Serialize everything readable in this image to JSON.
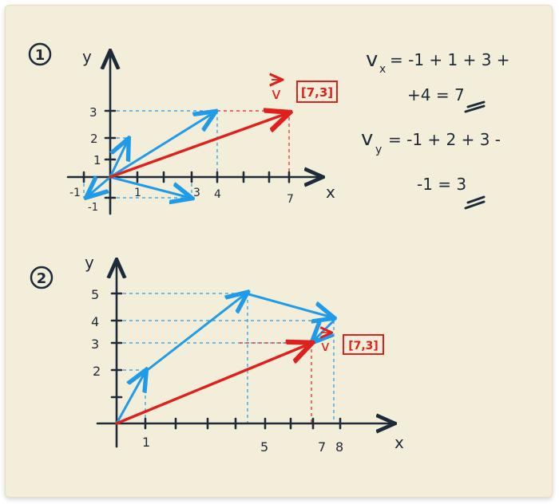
{
  "diagram1": {
    "number": "1",
    "x_axis_label": "x",
    "y_axis_label": "y",
    "x_ticks": [
      "-1",
      "1",
      "3",
      "4",
      "7"
    ],
    "y_ticks": [
      "3",
      "2",
      "1",
      "-1"
    ],
    "result_vector": "v",
    "result_coords": "[7,3]"
  },
  "diagram2": {
    "number": "2",
    "x_axis_label": "x",
    "y_axis_label": "y",
    "x_ticks": [
      "1",
      "5",
      "7",
      "8"
    ],
    "y_ticks": [
      "5",
      "4",
      "3",
      "2"
    ],
    "result_vector": "v",
    "result_coords": "[7,3]"
  },
  "equations": {
    "vx_line1": "v",
    "vx_sub": "x",
    "vx_line1_rest": "= -1 + 1 + 3 +",
    "vx_line2": "+4 = 7",
    "vy_line1": "v",
    "vy_sub": "y",
    "vy_line1_rest": "= -1 + 2 + 3 -",
    "vy_line2": "-1 = 3"
  },
  "colors": {
    "ink": "#1d2a3a",
    "blue": "#1f9be8",
    "red": "#e0201c",
    "paper": "#f3eed9"
  }
}
